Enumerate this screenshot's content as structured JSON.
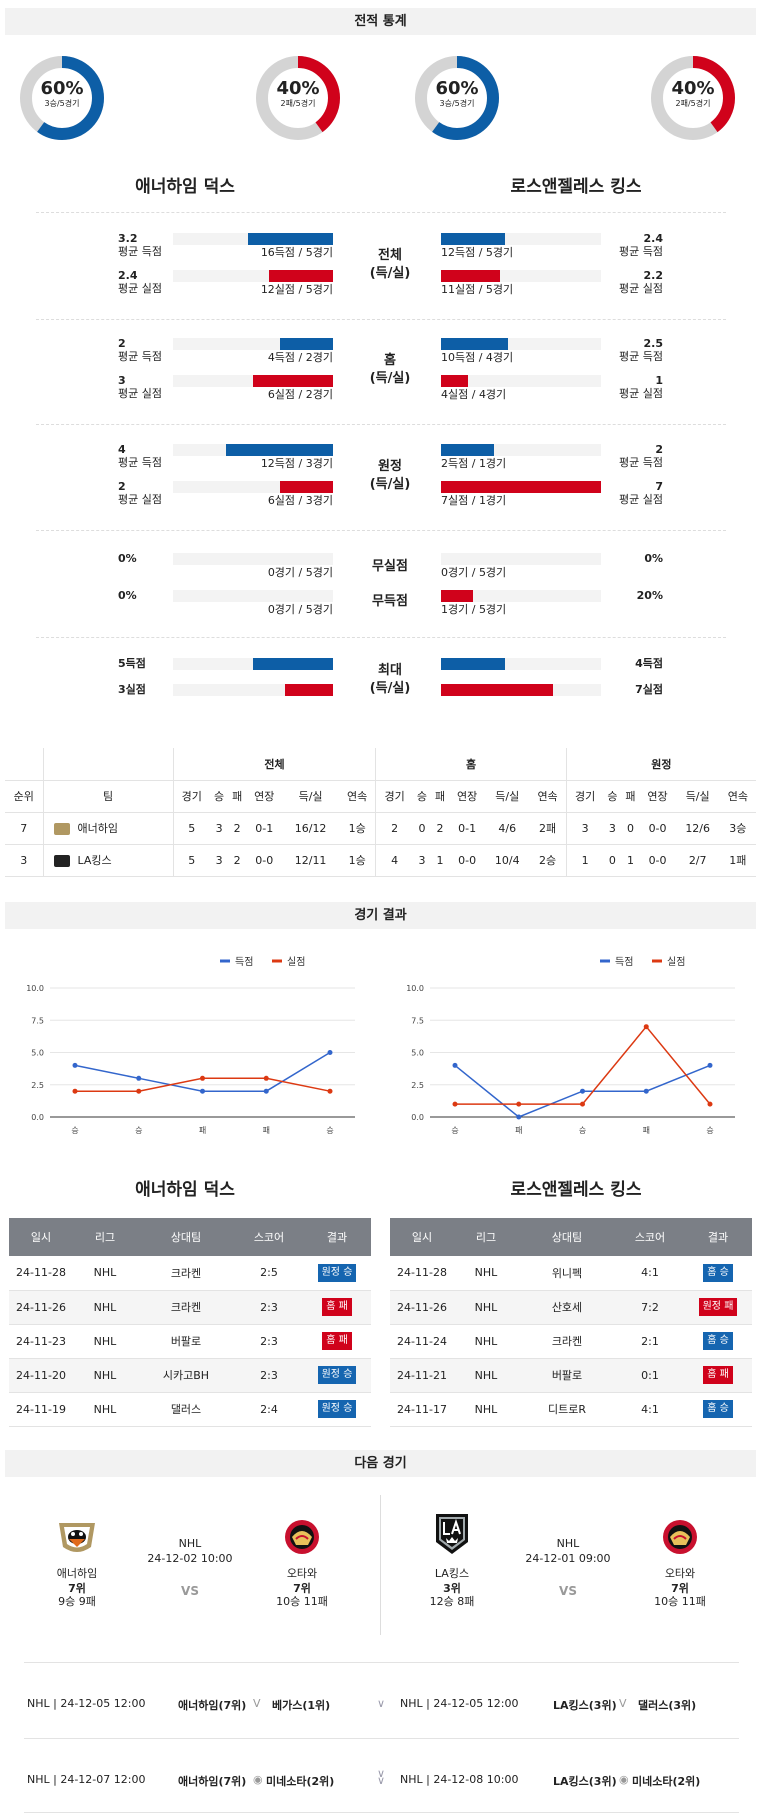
{
  "sections": {
    "record_stats": "전적 통계",
    "match_results": "경기 결과",
    "next_game": "다음 경기"
  },
  "teams": {
    "home": "애너하임 덕스",
    "away": "로스앤젤레스 킹스"
  },
  "donuts": [
    {
      "pct": "60%",
      "sub": "3승/5경기",
      "color": "#0d5ea6",
      "fraction": 0.6
    },
    {
      "pct": "40%",
      "sub": "2패/5경기",
      "color": "#d0021b",
      "fraction": 0.4
    },
    {
      "pct": "60%",
      "sub": "3승/5경기",
      "color": "#0d5ea6",
      "fraction": 0.6
    },
    {
      "pct": "40%",
      "sub": "2패/5경기",
      "color": "#d0021b",
      "fraction": 0.4
    }
  ],
  "stat_groups": [
    {
      "label1": "전체",
      "label2": "(득/실)",
      "left": [
        {
          "val": "3.2",
          "lbl": "평균 득점",
          "cap": "16득점 / 5경기",
          "color": "blue",
          "frac": 0.53
        },
        {
          "val": "2.4",
          "lbl": "평균 실점",
          "cap": "12실점 / 5경기",
          "color": "red",
          "frac": 0.4
        }
      ],
      "right": [
        {
          "val": "2.4",
          "lbl": "평균 득점",
          "cap": "12득점 / 5경기",
          "color": "blue",
          "frac": 0.4
        },
        {
          "val": "2.2",
          "lbl": "평균 실점",
          "cap": "11실점 / 5경기",
          "color": "red",
          "frac": 0.37
        }
      ]
    },
    {
      "label1": "홈",
      "label2": "(득/실)",
      "left": [
        {
          "val": "2",
          "lbl": "평균 득점",
          "cap": "4득점 / 2경기",
          "color": "blue",
          "frac": 0.33
        },
        {
          "val": "3",
          "lbl": "평균 실점",
          "cap": "6실점 / 2경기",
          "color": "red",
          "frac": 0.5
        }
      ],
      "right": [
        {
          "val": "2.5",
          "lbl": "평균 득점",
          "cap": "10득점 / 4경기",
          "color": "blue",
          "frac": 0.42
        },
        {
          "val": "1",
          "lbl": "평균 실점",
          "cap": "4실점 / 4경기",
          "color": "red",
          "frac": 0.17
        }
      ]
    },
    {
      "label1": "원정",
      "label2": "(득/실)",
      "left": [
        {
          "val": "4",
          "lbl": "평균 득점",
          "cap": "12득점 / 3경기",
          "color": "blue",
          "frac": 0.67
        },
        {
          "val": "2",
          "lbl": "평균 실점",
          "cap": "6실점 / 3경기",
          "color": "red",
          "frac": 0.33
        }
      ],
      "right": [
        {
          "val": "2",
          "lbl": "평균 득점",
          "cap": "2득점 / 1경기",
          "color": "blue",
          "frac": 0.33
        },
        {
          "val": "7",
          "lbl": "평균 실점",
          "cap": "7실점 / 1경기",
          "color": "red",
          "frac": 1.0
        }
      ]
    }
  ],
  "shutout": {
    "label_a": "무실점",
    "label_b": "무득점",
    "left": [
      {
        "val": "0%",
        "cap": "0경기 / 5경기",
        "frac": 0
      },
      {
        "val": "0%",
        "cap": "0경기 / 5경기",
        "frac": 0
      }
    ],
    "right": [
      {
        "val": "0%",
        "cap": "0경기 / 5경기",
        "frac": 0
      },
      {
        "val": "20%",
        "cap": "1경기 / 5경기",
        "frac": 0.2
      }
    ]
  },
  "max_group": {
    "label1": "최대",
    "label2": "(득/실)",
    "left": [
      {
        "val": "5득점",
        "frac": 0.5
      },
      {
        "val": "3실점",
        "frac": 0.3
      }
    ],
    "right": [
      {
        "val": "4득점",
        "frac": 0.4
      },
      {
        "val": "7실점",
        "frac": 0.7
      }
    ]
  },
  "standings": {
    "group_headers": [
      "전체",
      "홈",
      "원정"
    ],
    "col_rank": "순위",
    "col_team": "팀",
    "cols": [
      "경기",
      "승",
      "패",
      "연장",
      "득/실",
      "연속"
    ],
    "rows": [
      {
        "rank": "7",
        "team": "애너하임",
        "all": [
          "5",
          "3",
          "2",
          "0-1",
          "16/12",
          "1승"
        ],
        "home": [
          "2",
          "0",
          "2",
          "0-1",
          "4/6",
          "2패"
        ],
        "away": [
          "3",
          "3",
          "0",
          "0-0",
          "12/6",
          "3승"
        ]
      },
      {
        "rank": "3",
        "team": "LA킹스",
        "all": [
          "5",
          "3",
          "2",
          "0-0",
          "12/11",
          "1승"
        ],
        "home": [
          "4",
          "3",
          "1",
          "0-0",
          "10/4",
          "2승"
        ],
        "away": [
          "1",
          "0",
          "1",
          "0-0",
          "2/7",
          "1패"
        ]
      }
    ]
  },
  "chart_data": [
    {
      "type": "line",
      "categories": [
        "승",
        "승",
        "패",
        "패",
        "승"
      ],
      "ylim": [
        0,
        10
      ],
      "yticks": [
        "0.0",
        "2.5",
        "5.0",
        "7.5",
        "10.0"
      ],
      "series": [
        {
          "name": "득점",
          "color": "#3366cc",
          "values": [
            4,
            3,
            2,
            2,
            5
          ]
        },
        {
          "name": "실점",
          "color": "#dc3912",
          "values": [
            2,
            2,
            3,
            3,
            2
          ]
        }
      ]
    },
    {
      "type": "line",
      "categories": [
        "승",
        "패",
        "승",
        "패",
        "승"
      ],
      "ylim": [
        0,
        10
      ],
      "yticks": [
        "0.0",
        "2.5",
        "5.0",
        "7.5",
        "10.0"
      ],
      "series": [
        {
          "name": "득점",
          "color": "#3366cc",
          "values": [
            4,
            0,
            2,
            2,
            4
          ]
        },
        {
          "name": "실점",
          "color": "#dc3912",
          "values": [
            1,
            1,
            1,
            7,
            1
          ]
        }
      ]
    }
  ],
  "results_headers": [
    "일시",
    "리그",
    "상대팀",
    "스코어",
    "결과"
  ],
  "results_left": [
    {
      "date": "24-11-28",
      "league": "NHL",
      "opp": "크라켄",
      "score": "2:5",
      "result": "원정 승",
      "color": "blue"
    },
    {
      "date": "24-11-26",
      "league": "NHL",
      "opp": "크라켄",
      "score": "2:3",
      "result": "홈 패",
      "color": "red"
    },
    {
      "date": "24-11-23",
      "league": "NHL",
      "opp": "버팔로",
      "score": "2:3",
      "result": "홈 패",
      "color": "red"
    },
    {
      "date": "24-11-20",
      "league": "NHL",
      "opp": "시카고BH",
      "score": "2:3",
      "result": "원정 승",
      "color": "blue"
    },
    {
      "date": "24-11-19",
      "league": "NHL",
      "opp": "댈러스",
      "score": "2:4",
      "result": "원정 승",
      "color": "blue"
    }
  ],
  "results_right": [
    {
      "date": "24-11-28",
      "league": "NHL",
      "opp": "위니펙",
      "score": "4:1",
      "result": "홈 승",
      "color": "blue"
    },
    {
      "date": "24-11-26",
      "league": "NHL",
      "opp": "산호세",
      "score": "7:2",
      "result": "원정 패",
      "color": "red"
    },
    {
      "date": "24-11-24",
      "league": "NHL",
      "opp": "크라켄",
      "score": "2:1",
      "result": "홈 승",
      "color": "blue"
    },
    {
      "date": "24-11-21",
      "league": "NHL",
      "opp": "버팔로",
      "score": "0:1",
      "result": "홈 패",
      "color": "red"
    },
    {
      "date": "24-11-17",
      "league": "NHL",
      "opp": "디트로R",
      "score": "4:1",
      "result": "홈 승",
      "color": "blue"
    }
  ],
  "next_games": [
    {
      "league": "NHL",
      "datetime": "24-12-02 10:00",
      "vs": "VS",
      "t1": {
        "name": "애너하임",
        "rank": "7위",
        "rec": "9승 9패"
      },
      "t2": {
        "name": "오타와",
        "rank": "7위",
        "rec": "10승 11패"
      }
    },
    {
      "league": "NHL",
      "datetime": "24-12-01 09:00",
      "vs": "VS",
      "t1": {
        "name": "LA킹스",
        "rank": "3위",
        "rec": "12승 8패"
      },
      "t2": {
        "name": "오타와",
        "rank": "7위",
        "rec": "10승 11패"
      }
    }
  ],
  "upcoming": [
    {
      "left": {
        "info": "NHL | 24-12-05 12:00",
        "t1": "애너하임(7위)",
        "t2": "베가스(1위)"
      },
      "right": {
        "info": "NHL | 24-12-05 12:00",
        "t1": "LA킹스(3위)",
        "t2": "댈러스(3위)"
      }
    },
    {
      "left": {
        "info": "NHL | 24-12-07 12:00",
        "t1": "애너하임(7위)",
        "t2": "미네소타(2위)"
      },
      "right": {
        "info": "NHL | 24-12-08 10:00",
        "t1": "LA킹스(3위)",
        "t2": "미네소타(2위)"
      }
    }
  ]
}
